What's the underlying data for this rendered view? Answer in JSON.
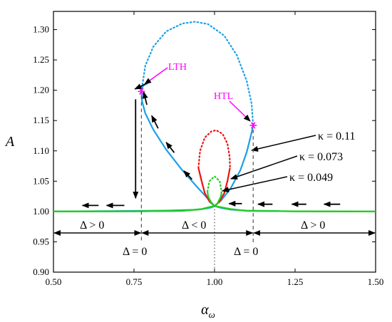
{
  "chart_data": {
    "type": "line",
    "title": "",
    "xlabel": "α",
    "xlabel_sub": "ω",
    "ylabel": "A",
    "xlim": [
      0.5,
      1.5
    ],
    "ylim": [
      0.9,
      1.33
    ],
    "xticks": [
      "0.50",
      "0.75",
      "1.00",
      "1.25",
      "1.50"
    ],
    "yticks": [
      "0.90",
      "0.95",
      "1.00",
      "1.05",
      "1.10",
      "1.15",
      "1.20",
      "1.25",
      "1.30"
    ],
    "grid": false,
    "colors": {
      "blue": "#1ca0e6",
      "red": "#ee1111",
      "green": "#22cc22",
      "magenta": "#ff00ff",
      "black": "#000000"
    },
    "series": [
      {
        "name": "κ = 0.11",
        "color": "#1ca0e6",
        "stable_left": [
          [
            0.5,
            1.0
          ],
          [
            0.7,
            1.0008
          ],
          [
            0.85,
            1.0015
          ],
          [
            0.95,
            1.003
          ],
          [
            0.985,
            1.006
          ],
          [
            0.997,
            1.008
          ],
          [
            1.0,
            1.009
          ],
          [
            0.985,
            1.018
          ],
          [
            0.95,
            1.038
          ],
          [
            0.9,
            1.068
          ],
          [
            0.85,
            1.102
          ],
          [
            0.81,
            1.135
          ],
          [
            0.785,
            1.162
          ],
          [
            0.775,
            1.182
          ],
          [
            0.773,
            1.198
          ],
          [
            0.778,
            1.208
          ],
          [
            0.792,
            1.211
          ]
        ],
        "stable_right": [
          [
            1.0,
            1.009
          ],
          [
            1.02,
            1.006
          ],
          [
            1.05,
            1.003
          ],
          [
            1.1,
            1.0015
          ],
          [
            1.2,
            1.0008
          ],
          [
            1.5,
            1.0
          ],
          [
            1.0,
            1.009
          ],
          [
            1.02,
            1.018
          ],
          [
            1.05,
            1.038
          ],
          [
            1.08,
            1.068
          ],
          [
            1.1,
            1.098
          ],
          [
            1.115,
            1.13
          ],
          [
            1.12,
            1.142
          ]
        ],
        "unstable": [
          [
            0.773,
            1.198
          ],
          [
            0.785,
            1.24
          ],
          [
            0.81,
            1.272
          ],
          [
            0.85,
            1.297
          ],
          [
            0.9,
            1.31
          ],
          [
            0.94,
            1.313
          ],
          [
            0.98,
            1.309
          ],
          [
            1.03,
            1.29
          ],
          [
            1.07,
            1.257
          ],
          [
            1.1,
            1.215
          ],
          [
            1.115,
            1.178
          ],
          [
            1.12,
            1.142
          ]
        ]
      },
      {
        "name": "κ = 0.073",
        "color": "#ee1111",
        "stable_left": [
          [
            1.0,
            1.009
          ],
          [
            0.985,
            1.016
          ],
          [
            0.97,
            1.03
          ],
          [
            0.96,
            1.05
          ],
          [
            0.95,
            1.072
          ]
        ],
        "stable_right": [
          [
            1.0,
            1.009
          ],
          [
            1.015,
            1.016
          ],
          [
            1.03,
            1.03
          ],
          [
            1.04,
            1.05
          ],
          [
            1.048,
            1.072
          ]
        ],
        "unstable": [
          [
            0.95,
            1.072
          ],
          [
            0.955,
            1.1
          ],
          [
            0.97,
            1.122
          ],
          [
            0.99,
            1.132
          ],
          [
            1.005,
            1.134
          ],
          [
            1.025,
            1.128
          ],
          [
            1.04,
            1.112
          ],
          [
            1.047,
            1.09
          ],
          [
            1.048,
            1.072
          ]
        ]
      },
      {
        "name": "κ = 0.049",
        "color": "#22cc22",
        "stable_left": [
          [
            0.5,
            1.0
          ],
          [
            0.75,
            1.0003
          ],
          [
            0.9,
            1.001
          ],
          [
            0.96,
            1.004
          ],
          [
            0.99,
            1.008
          ],
          [
            1.0,
            1.009
          ],
          [
            0.99,
            1.014
          ],
          [
            0.98,
            1.025
          ],
          [
            0.978,
            1.033
          ]
        ],
        "stable_right": [
          [
            1.0,
            1.009
          ],
          [
            1.01,
            1.008
          ],
          [
            1.05,
            1.004
          ],
          [
            1.1,
            1.001
          ],
          [
            1.25,
            1.0003
          ],
          [
            1.5,
            1.0
          ],
          [
            1.0,
            1.009
          ],
          [
            1.01,
            1.014
          ],
          [
            1.02,
            1.025
          ],
          [
            1.022,
            1.033
          ]
        ],
        "unstable": [
          [
            0.978,
            1.033
          ],
          [
            0.984,
            1.05
          ],
          [
            1.0,
            1.058
          ],
          [
            1.016,
            1.05
          ],
          [
            1.022,
            1.033
          ]
        ]
      }
    ],
    "arrows": [
      {
        "from": [
          0.64,
          1.01
        ],
        "to": [
          0.59,
          1.01
        ]
      },
      {
        "from": [
          0.72,
          1.01
        ],
        "to": [
          0.665,
          1.01
        ]
      },
      {
        "from": [
          1.085,
          1.013
        ],
        "to": [
          1.045,
          1.013
        ]
      },
      {
        "from": [
          1.18,
          1.012
        ],
        "to": [
          1.135,
          1.012
        ]
      },
      {
        "from": [
          1.285,
          1.012
        ],
        "to": [
          1.24,
          1.012
        ]
      },
      {
        "from": [
          1.39,
          1.012
        ],
        "to": [
          1.34,
          1.012
        ]
      },
      {
        "from": [
          0.93,
          1.053
        ],
        "to": [
          0.905,
          1.067
        ]
      },
      {
        "from": [
          0.875,
          1.097
        ],
        "to": [
          0.85,
          1.114
        ]
      },
      {
        "from": [
          0.825,
          1.137
        ],
        "to": [
          0.805,
          1.158
        ]
      },
      {
        "from": [
          0.79,
          1.176
        ],
        "to": [
          0.78,
          1.197
        ]
      },
      {
        "from": [
          0.785,
          1.21
        ],
        "to": [
          0.753,
          1.202
        ]
      },
      {
        "from": [
          0.755,
          1.185
        ],
        "to": [
          0.755,
          1.022
        ]
      }
    ],
    "vlines": [
      0.773,
      1.12
    ],
    "center_vline": 1.0,
    "bifurcation_points": [
      [
        0.773,
        1.198
      ],
      [
        1.12,
        1.142
      ]
    ],
    "kappa_labels": [
      "κ = 0.11",
      "κ = 0.073",
      "κ = 0.049"
    ],
    "annotations": {
      "lth": "LTH",
      "htl": "HTL",
      "delta_gt_left": "Δ > 0",
      "delta_lt": "Δ < 0",
      "delta_gt_right": "Δ > 0",
      "delta_eq_left": "Δ = 0",
      "delta_eq_right": "Δ = 0"
    }
  }
}
